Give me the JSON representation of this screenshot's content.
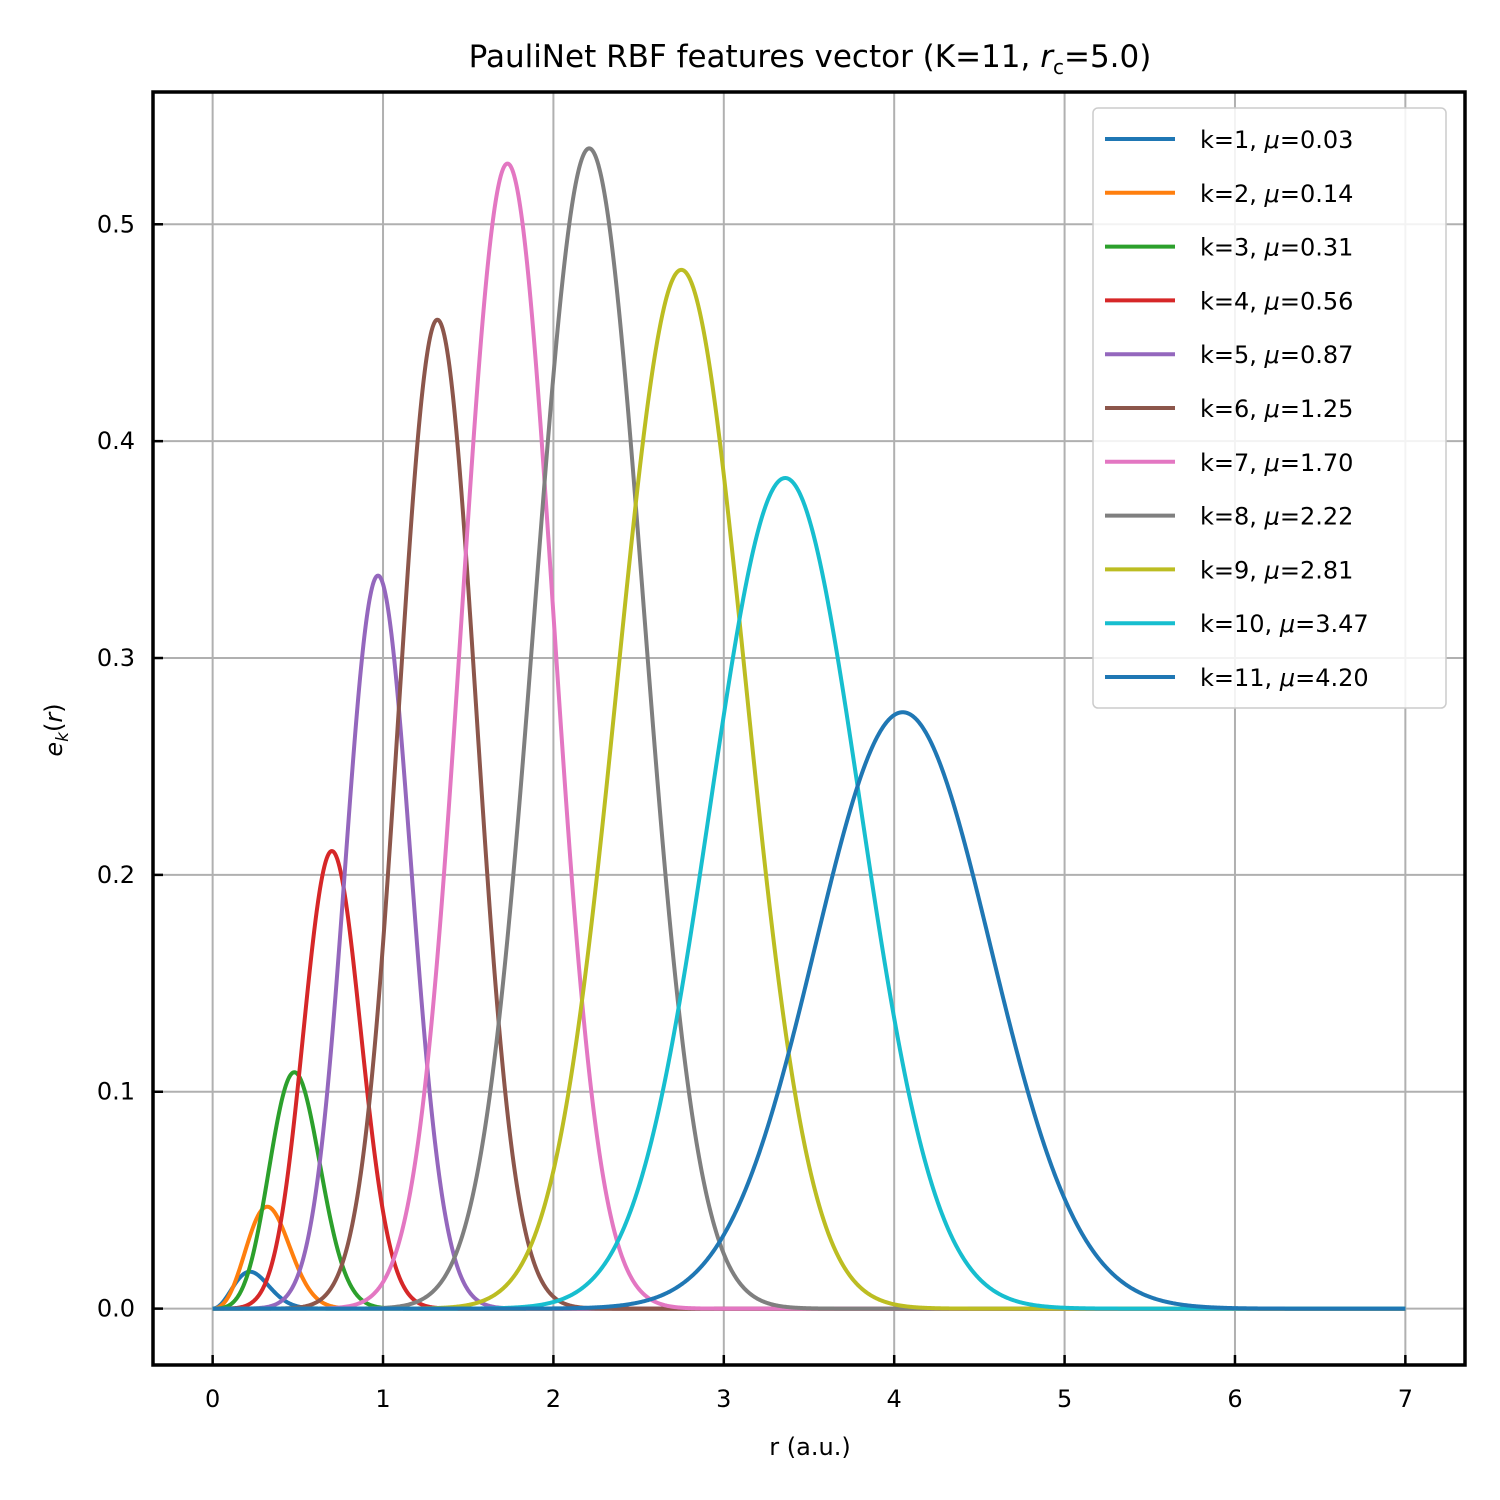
{
  "chart_data": {
    "type": "line",
    "title": "PauliNet RBF features vector (K=11, r_c=5.0)",
    "title_parts": {
      "prefix": "PauliNet RBF features vector (K=11, ",
      "var": "r",
      "sub": "c",
      "suffix": "=5.0)"
    },
    "xlabel": "r (a.u.)",
    "ylabel": "e_k(r)",
    "ylabel_parts": {
      "var": "e",
      "sub": "k",
      "suffix_open": "(",
      "arg": "r",
      "suffix_close": ")"
    },
    "xlim": [
      -0.35,
      7.35
    ],
    "ylim": [
      -0.026,
      0.561
    ],
    "x_range": [
      0,
      7
    ],
    "grid": true,
    "legend_position": "top-right",
    "x_ticks": [
      0,
      1,
      2,
      3,
      4,
      5,
      6,
      7
    ],
    "x_tick_labels": [
      "0",
      "1",
      "2",
      "3",
      "4",
      "5",
      "6",
      "7"
    ],
    "y_ticks": [
      0.0,
      0.1,
      0.2,
      0.3,
      0.4,
      0.5
    ],
    "y_tick_labels": [
      "0.0",
      "0.1",
      "0.2",
      "0.3",
      "0.4",
      "0.5"
    ],
    "series": [
      {
        "name": "k=1, μ=0.03",
        "k": "k=1",
        "mu": "0.03",
        "color": "#1f77b4",
        "peak_x": 0.22,
        "peak_y": 0.017
      },
      {
        "name": "k=2, μ=0.14",
        "k": "k=2",
        "mu": "0.14",
        "color": "#ff7f0e",
        "peak_x": 0.32,
        "peak_y": 0.047
      },
      {
        "name": "k=3, μ=0.31",
        "k": "k=3",
        "mu": "0.31",
        "color": "#2ca02c",
        "peak_x": 0.48,
        "peak_y": 0.109
      },
      {
        "name": "k=4, μ=0.56",
        "k": "k=4",
        "mu": "0.56",
        "color": "#d62728",
        "peak_x": 0.7,
        "peak_y": 0.211
      },
      {
        "name": "k=5, μ=0.87",
        "k": "k=5",
        "mu": "0.87",
        "color": "#9467bd",
        "peak_x": 0.97,
        "peak_y": 0.338
      },
      {
        "name": "k=6, μ=1.25",
        "k": "k=6",
        "mu": "1.25",
        "color": "#8c564b",
        "peak_x": 1.32,
        "peak_y": 0.456
      },
      {
        "name": "k=7, μ=1.70",
        "k": "k=7",
        "mu": "1.70",
        "color": "#e377c2",
        "peak_x": 1.73,
        "peak_y": 0.528
      },
      {
        "name": "k=8, μ=2.22",
        "k": "k=8",
        "mu": "2.22",
        "color": "#7f7f7f",
        "peak_x": 2.21,
        "peak_y": 0.535
      },
      {
        "name": "k=9, μ=2.81",
        "k": "k=9",
        "mu": "2.81",
        "color": "#bcbd22",
        "peak_x": 2.75,
        "peak_y": 0.479
      },
      {
        "name": "k=10, μ=3.47",
        "k": "k=10",
        "mu": "3.47",
        "color": "#17becf",
        "peak_x": 3.36,
        "peak_y": 0.383
      },
      {
        "name": "k=11, μ=4.20",
        "k": "k=11",
        "mu": "4.20",
        "color": "#1f77b4",
        "peak_x": 4.05,
        "peak_y": 0.275
      }
    ]
  }
}
